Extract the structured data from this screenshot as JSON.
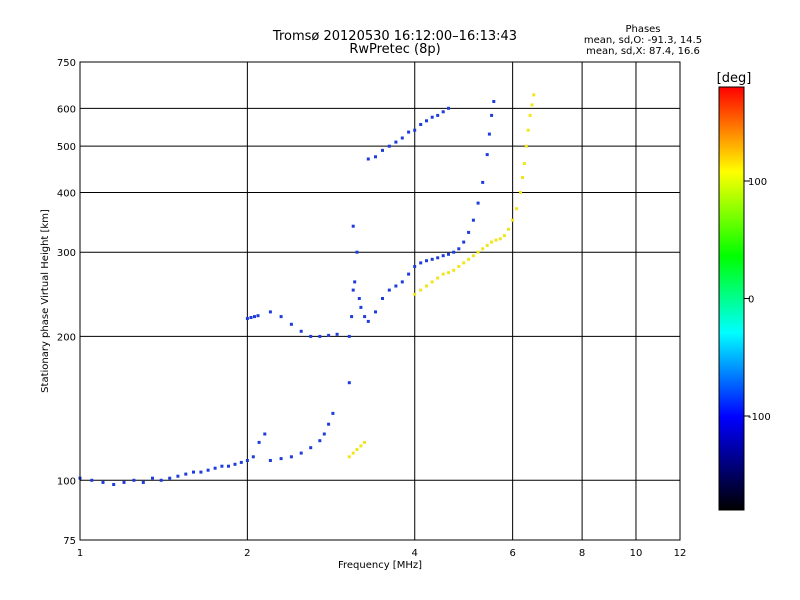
{
  "chart_data": {
    "type": "scatter",
    "title": "Tromsø 20120530 16:12:00–16:13:43",
    "subtitle": "RwPretec (8p)",
    "xlabel": "Frequency [MHz]",
    "ylabel": "Stationary phase Virtual Height [km]",
    "x_scale": "log",
    "y_scale": "log",
    "xlim": [
      1,
      12
    ],
    "ylim": [
      75,
      750
    ],
    "x_ticks": [
      1,
      2,
      4,
      6,
      8,
      10,
      12
    ],
    "y_ticks": [
      75,
      100,
      200,
      300,
      400,
      500,
      600,
      750
    ],
    "x_gridlines": [
      2,
      4,
      6,
      8,
      10
    ],
    "y_gridlines": [
      100,
      200,
      300,
      400,
      500,
      600
    ],
    "grid": true,
    "stats_box": {
      "title": "Phases",
      "line1": "mean, sd,O:  -91.3, 14.5",
      "line2": "mean, sd,X:  87.4, 16.6"
    },
    "colorbar": {
      "label": "[deg]",
      "range": [
        -180,
        180
      ],
      "ticks": [
        100,
        0,
        -100
      ],
      "colors": [
        "#ff0000",
        "#ffff00",
        "#00ff00",
        "#00ffff",
        "#0000ff",
        "#000000"
      ]
    },
    "series": [
      {
        "name": "O",
        "phase_deg": -95,
        "color": "#1e3cdc",
        "points": [
          [
            1.0,
            101
          ],
          [
            1.05,
            100
          ],
          [
            1.1,
            99
          ],
          [
            1.15,
            98
          ],
          [
            1.2,
            99
          ],
          [
            1.25,
            100
          ],
          [
            1.3,
            99
          ],
          [
            1.35,
            101
          ],
          [
            1.4,
            100
          ],
          [
            1.45,
            101
          ],
          [
            1.5,
            102
          ],
          [
            1.55,
            103
          ],
          [
            1.6,
            104
          ],
          [
            1.65,
            104
          ],
          [
            1.7,
            105
          ],
          [
            1.75,
            106
          ],
          [
            1.8,
            107
          ],
          [
            1.85,
            107
          ],
          [
            1.9,
            108
          ],
          [
            1.95,
            109
          ],
          [
            2.0,
            110
          ],
          [
            2.05,
            112
          ],
          [
            2.1,
            120
          ],
          [
            2.15,
            125
          ],
          [
            2.0,
            218
          ],
          [
            2.03,
            219
          ],
          [
            2.06,
            220
          ],
          [
            2.09,
            221
          ],
          [
            2.2,
            110
          ],
          [
            2.3,
            111
          ],
          [
            2.4,
            112
          ],
          [
            2.5,
            114
          ],
          [
            2.6,
            117
          ],
          [
            2.7,
            121
          ],
          [
            2.75,
            125
          ],
          [
            2.8,
            131
          ],
          [
            2.85,
            138
          ],
          [
            3.05,
            160
          ],
          [
            3.05,
            200
          ],
          [
            3.08,
            220
          ],
          [
            3.1,
            250
          ],
          [
            3.12,
            260
          ],
          [
            3.15,
            300
          ],
          [
            3.1,
            340
          ],
          [
            3.18,
            240
          ],
          [
            3.2,
            230
          ],
          [
            3.25,
            220
          ],
          [
            3.3,
            215
          ],
          [
            3.4,
            225
          ],
          [
            3.5,
            240
          ],
          [
            3.6,
            250
          ],
          [
            3.7,
            255
          ],
          [
            3.8,
            260
          ],
          [
            3.9,
            270
          ],
          [
            4.0,
            280
          ],
          [
            4.1,
            285
          ],
          [
            4.2,
            288
          ],
          [
            4.3,
            290
          ],
          [
            4.4,
            292
          ],
          [
            4.5,
            295
          ],
          [
            4.6,
            297
          ],
          [
            4.7,
            300
          ],
          [
            4.8,
            305
          ],
          [
            4.9,
            315
          ],
          [
            5.0,
            330
          ],
          [
            5.1,
            350
          ],
          [
            5.2,
            380
          ],
          [
            5.3,
            420
          ],
          [
            5.4,
            480
          ],
          [
            5.45,
            530
          ],
          [
            5.5,
            580
          ],
          [
            5.55,
            620
          ],
          [
            3.3,
            470
          ],
          [
            3.4,
            475
          ],
          [
            3.5,
            490
          ],
          [
            3.6,
            500
          ],
          [
            3.7,
            510
          ],
          [
            3.8,
            520
          ],
          [
            3.9,
            535
          ],
          [
            4.0,
            540
          ],
          [
            4.1,
            555
          ],
          [
            4.2,
            565
          ],
          [
            4.3,
            575
          ],
          [
            4.4,
            580
          ],
          [
            4.5,
            590
          ],
          [
            4.6,
            600
          ],
          [
            2.6,
            200
          ],
          [
            2.7,
            200
          ],
          [
            2.8,
            201
          ],
          [
            2.9,
            202
          ],
          [
            2.5,
            205
          ],
          [
            2.4,
            212
          ],
          [
            2.3,
            220
          ],
          [
            2.2,
            225
          ]
        ]
      },
      {
        "name": "X",
        "phase_deg": 90,
        "color": "#f0e61e",
        "points": [
          [
            3.05,
            112
          ],
          [
            3.1,
            114
          ],
          [
            3.15,
            116
          ],
          [
            3.2,
            118
          ],
          [
            3.25,
            120
          ],
          [
            4.0,
            245
          ],
          [
            4.1,
            250
          ],
          [
            4.2,
            255
          ],
          [
            4.3,
            260
          ],
          [
            4.4,
            265
          ],
          [
            4.5,
            270
          ],
          [
            4.6,
            272
          ],
          [
            4.7,
            275
          ],
          [
            4.8,
            280
          ],
          [
            4.9,
            285
          ],
          [
            5.0,
            290
          ],
          [
            5.1,
            295
          ],
          [
            5.2,
            300
          ],
          [
            5.3,
            305
          ],
          [
            5.4,
            310
          ],
          [
            5.5,
            315
          ],
          [
            5.6,
            318
          ],
          [
            5.7,
            320
          ],
          [
            5.8,
            325
          ],
          [
            5.9,
            335
          ],
          [
            6.0,
            350
          ],
          [
            6.1,
            370
          ],
          [
            6.2,
            400
          ],
          [
            6.25,
            430
          ],
          [
            6.3,
            460
          ],
          [
            6.35,
            500
          ],
          [
            6.4,
            540
          ],
          [
            6.45,
            580
          ],
          [
            6.5,
            610
          ],
          [
            6.55,
            640
          ]
        ]
      }
    ]
  }
}
